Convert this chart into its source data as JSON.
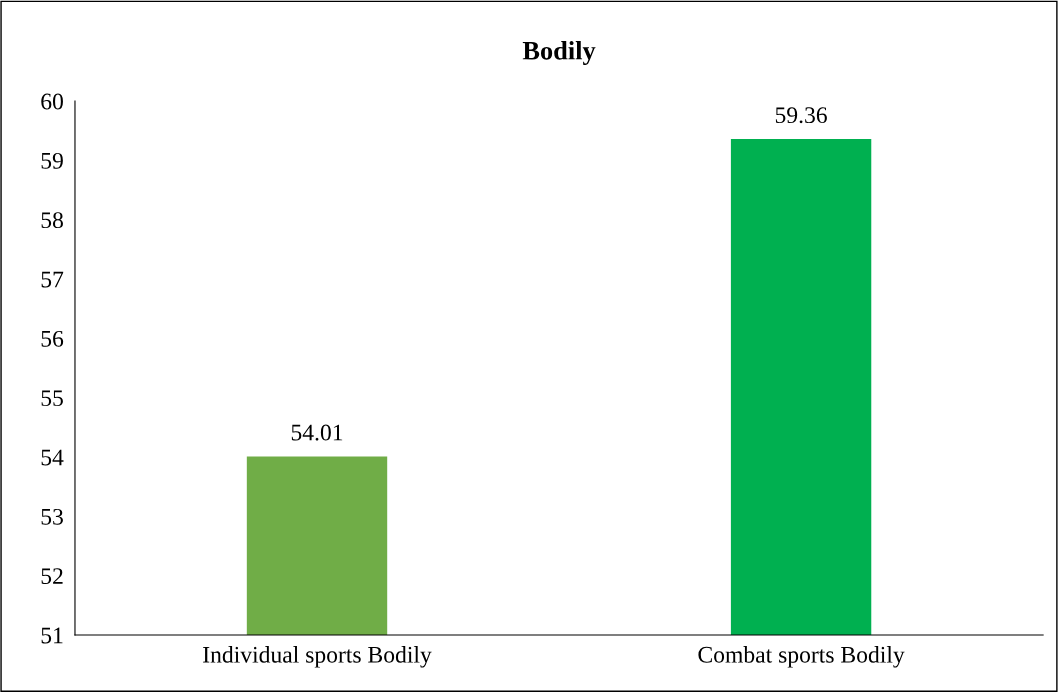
{
  "chart_data": {
    "type": "bar",
    "title": "Bodily",
    "categories": [
      "Individual sports Bodily",
      "Combat sports Bodily"
    ],
    "values": [
      54.01,
      59.36
    ],
    "colors": [
      "#70ad47",
      "#00b050"
    ],
    "ylim": [
      51,
      60
    ],
    "yticks": [
      51,
      52,
      53,
      54,
      55,
      56,
      57,
      58,
      59,
      60
    ],
    "data_labels": true,
    "grid": false,
    "legend": false
  }
}
